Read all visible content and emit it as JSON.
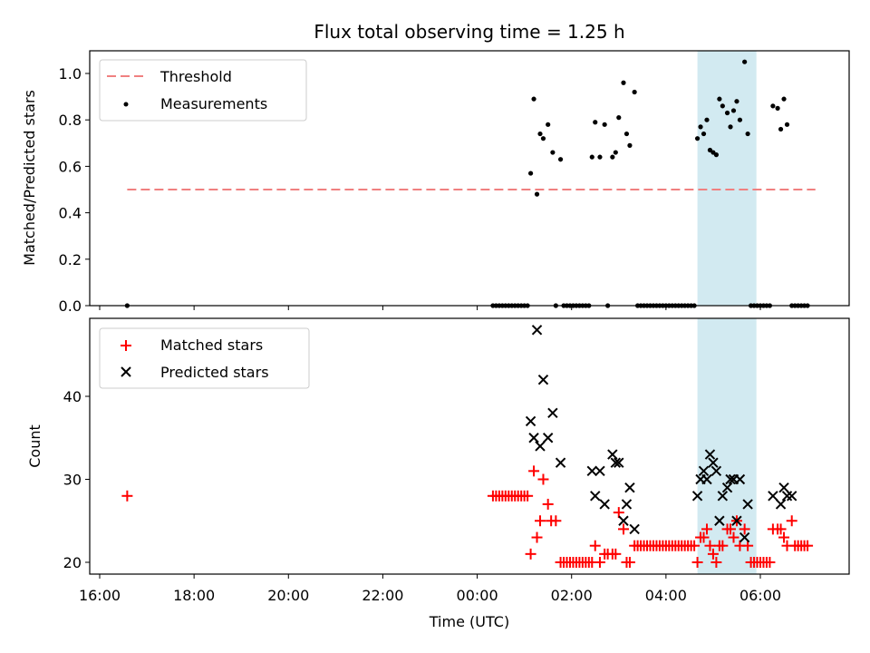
{
  "chart_data": [
    {
      "type": "scatter",
      "title": "Flux total observing time = 1.25 h",
      "xlabel": "",
      "ylabel": "Matched/Predicted stars",
      "xlim": [
        "16:00",
        "07:30 (+1d)"
      ],
      "ylim": [
        0,
        1.1
      ],
      "yticks": [
        "0.0",
        "0.2",
        "0.4",
        "0.6",
        "0.8",
        "1.0"
      ],
      "shaded_span": {
        "from": "04:40",
        "to": "05:55",
        "color": "#add8e6"
      },
      "threshold": {
        "label": "Threshold",
        "y": 0.5,
        "x_from": "16:35",
        "x_to": "07:10",
        "color": "#f08080",
        "style": "dashed"
      },
      "legend": {
        "placement": "top-left",
        "entries": [
          "Threshold",
          "Measurements"
        ]
      },
      "series": [
        {
          "name": "Measurements",
          "color": "#000000",
          "points": [
            [
              "16:35",
              0
            ],
            [
              "00:20",
              0
            ],
            [
              "00:24",
              0
            ],
            [
              "00:28",
              0
            ],
            [
              "00:32",
              0
            ],
            [
              "00:36",
              0
            ],
            [
              "00:40",
              0
            ],
            [
              "00:44",
              0
            ],
            [
              "00:48",
              0
            ],
            [
              "00:52",
              0
            ],
            [
              "00:56",
              0
            ],
            [
              "01:00",
              0
            ],
            [
              "01:04",
              0
            ],
            [
              "01:08",
              0.57
            ],
            [
              "01:12",
              0.89
            ],
            [
              "01:16",
              0.48
            ],
            [
              "01:20",
              0.74
            ],
            [
              "01:24",
              0.72
            ],
            [
              "01:30",
              0.78
            ],
            [
              "01:36",
              0.66
            ],
            [
              "01:40",
              0
            ],
            [
              "01:46",
              0.63
            ],
            [
              "01:50",
              0
            ],
            [
              "01:54",
              0
            ],
            [
              "01:58",
              0
            ],
            [
              "02:02",
              0
            ],
            [
              "02:06",
              0
            ],
            [
              "02:10",
              0
            ],
            [
              "02:14",
              0
            ],
            [
              "02:18",
              0
            ],
            [
              "02:22",
              0
            ],
            [
              "02:26",
              0.64
            ],
            [
              "02:30",
              0.79
            ],
            [
              "02:36",
              0.64
            ],
            [
              "02:42",
              0.78
            ],
            [
              "02:46",
              0
            ],
            [
              "02:52",
              0.64
            ],
            [
              "02:56",
              0.66
            ],
            [
              "03:00",
              0.81
            ],
            [
              "03:06",
              0.96
            ],
            [
              "03:10",
              0.74
            ],
            [
              "03:14",
              0.69
            ],
            [
              "03:20",
              0.92
            ],
            [
              "03:24",
              0
            ],
            [
              "03:28",
              0
            ],
            [
              "03:32",
              0
            ],
            [
              "03:36",
              0
            ],
            [
              "03:40",
              0
            ],
            [
              "03:44",
              0
            ],
            [
              "03:48",
              0
            ],
            [
              "03:52",
              0
            ],
            [
              "03:56",
              0
            ],
            [
              "04:00",
              0
            ],
            [
              "04:04",
              0
            ],
            [
              "04:08",
              0
            ],
            [
              "04:12",
              0
            ],
            [
              "04:16",
              0
            ],
            [
              "04:20",
              0
            ],
            [
              "04:24",
              0
            ],
            [
              "04:28",
              0
            ],
            [
              "04:32",
              0
            ],
            [
              "04:36",
              0
            ],
            [
              "04:40",
              0.72
            ],
            [
              "04:44",
              0.77
            ],
            [
              "04:48",
              0.74
            ],
            [
              "04:52",
              0.8
            ],
            [
              "04:56",
              0.67
            ],
            [
              "05:00",
              0.66
            ],
            [
              "05:04",
              0.65
            ],
            [
              "05:08",
              0.89
            ],
            [
              "05:12",
              0.86
            ],
            [
              "05:18",
              0.83
            ],
            [
              "05:22",
              0.77
            ],
            [
              "05:26",
              0.84
            ],
            [
              "05:30",
              0.88
            ],
            [
              "05:34",
              0.8
            ],
            [
              "05:40",
              1.05
            ],
            [
              "05:44",
              0.74
            ],
            [
              "05:48",
              0
            ],
            [
              "05:52",
              0
            ],
            [
              "05:56",
              0
            ],
            [
              "06:00",
              0
            ],
            [
              "06:04",
              0
            ],
            [
              "06:08",
              0
            ],
            [
              "06:12",
              0
            ],
            [
              "06:16",
              0.86
            ],
            [
              "06:22",
              0.85
            ],
            [
              "06:26",
              0.76
            ],
            [
              "06:30",
              0.89
            ],
            [
              "06:34",
              0.78
            ],
            [
              "06:40",
              0
            ],
            [
              "06:44",
              0
            ],
            [
              "06:48",
              0
            ],
            [
              "06:52",
              0
            ],
            [
              "06:56",
              0
            ],
            [
              "07:00",
              0
            ]
          ]
        }
      ]
    },
    {
      "type": "scatter",
      "title": "",
      "xlabel": "Time (UTC)",
      "ylabel": "Count",
      "xlim": [
        "16:00",
        "07:30 (+1d)"
      ],
      "ylim": [
        18.5,
        49
      ],
      "xticks": [
        "16:00",
        "18:00",
        "20:00",
        "22:00",
        "00:00",
        "02:00",
        "04:00",
        "06:00"
      ],
      "yticks": [
        "20",
        "30",
        "40"
      ],
      "shaded_span": {
        "from": "04:40",
        "to": "05:55",
        "color": "#add8e6"
      },
      "legend": {
        "placement": "top-left",
        "entries": [
          "Matched stars",
          "Predicted stars"
        ]
      },
      "series": [
        {
          "name": "Matched stars",
          "color": "#ff0000",
          "marker": "plus",
          "points": [
            [
              "16:35",
              28
            ],
            [
              "00:20",
              28
            ],
            [
              "00:24",
              28
            ],
            [
              "00:28",
              28
            ],
            [
              "00:32",
              28
            ],
            [
              "00:36",
              28
            ],
            [
              "00:40",
              28
            ],
            [
              "00:44",
              28
            ],
            [
              "00:48",
              28
            ],
            [
              "00:52",
              28
            ],
            [
              "00:56",
              28
            ],
            [
              "01:00",
              28
            ],
            [
              "01:04",
              28
            ],
            [
              "01:08",
              21
            ],
            [
              "01:12",
              31
            ],
            [
              "01:16",
              23
            ],
            [
              "01:20",
              25
            ],
            [
              "01:24",
              30
            ],
            [
              "01:30",
              27
            ],
            [
              "01:34",
              25
            ],
            [
              "01:40",
              25
            ],
            [
              "01:46",
              20
            ],
            [
              "01:50",
              20
            ],
            [
              "01:54",
              20
            ],
            [
              "01:58",
              20
            ],
            [
              "02:02",
              20
            ],
            [
              "02:06",
              20
            ],
            [
              "02:10",
              20
            ],
            [
              "02:14",
              20
            ],
            [
              "02:18",
              20
            ],
            [
              "02:22",
              20
            ],
            [
              "02:26",
              20
            ],
            [
              "02:30",
              22
            ],
            [
              "02:36",
              20
            ],
            [
              "02:42",
              21
            ],
            [
              "02:46",
              21
            ],
            [
              "02:52",
              21
            ],
            [
              "02:56",
              21
            ],
            [
              "03:00",
              26
            ],
            [
              "03:06",
              24
            ],
            [
              "03:10",
              20
            ],
            [
              "03:14",
              20
            ],
            [
              "03:20",
              22
            ],
            [
              "03:24",
              22
            ],
            [
              "03:28",
              22
            ],
            [
              "03:32",
              22
            ],
            [
              "03:36",
              22
            ],
            [
              "03:40",
              22
            ],
            [
              "03:44",
              22
            ],
            [
              "03:48",
              22
            ],
            [
              "03:52",
              22
            ],
            [
              "03:56",
              22
            ],
            [
              "04:00",
              22
            ],
            [
              "04:04",
              22
            ],
            [
              "04:08",
              22
            ],
            [
              "04:12",
              22
            ],
            [
              "04:16",
              22
            ],
            [
              "04:20",
              22
            ],
            [
              "04:24",
              22
            ],
            [
              "04:28",
              22
            ],
            [
              "04:32",
              22
            ],
            [
              "04:36",
              22
            ],
            [
              "04:40",
              20
            ],
            [
              "04:44",
              23
            ],
            [
              "04:48",
              23
            ],
            [
              "04:52",
              24
            ],
            [
              "04:56",
              22
            ],
            [
              "05:00",
              21
            ],
            [
              "05:04",
              20
            ],
            [
              "05:08",
              22
            ],
            [
              "05:12",
              22
            ],
            [
              "05:18",
              24
            ],
            [
              "05:22",
              24
            ],
            [
              "05:26",
              23
            ],
            [
              "05:30",
              25
            ],
            [
              "05:34",
              22
            ],
            [
              "05:40",
              24
            ],
            [
              "05:44",
              22
            ],
            [
              "05:48",
              20
            ],
            [
              "05:52",
              20
            ],
            [
              "05:56",
              20
            ],
            [
              "06:00",
              20
            ],
            [
              "06:04",
              20
            ],
            [
              "06:08",
              20
            ],
            [
              "06:12",
              20
            ],
            [
              "06:16",
              24
            ],
            [
              "06:22",
              24
            ],
            [
              "06:26",
              24
            ],
            [
              "06:30",
              23
            ],
            [
              "06:34",
              22
            ],
            [
              "06:40",
              25
            ],
            [
              "06:44",
              22
            ],
            [
              "06:48",
              22
            ],
            [
              "06:52",
              22
            ],
            [
              "06:56",
              22
            ],
            [
              "07:00",
              22
            ]
          ]
        },
        {
          "name": "Predicted stars",
          "color": "#000000",
          "marker": "x",
          "points": [
            [
              "01:08",
              37
            ],
            [
              "01:12",
              35
            ],
            [
              "01:16",
              48
            ],
            [
              "01:20",
              34
            ],
            [
              "01:24",
              42
            ],
            [
              "01:30",
              35
            ],
            [
              "01:36",
              38
            ],
            [
              "01:46",
              32
            ],
            [
              "02:26",
              31
            ],
            [
              "02:30",
              28
            ],
            [
              "02:36",
              31
            ],
            [
              "02:42",
              27
            ],
            [
              "02:52",
              33
            ],
            [
              "02:56",
              32
            ],
            [
              "03:00",
              32
            ],
            [
              "03:06",
              25
            ],
            [
              "03:10",
              27
            ],
            [
              "03:14",
              29
            ],
            [
              "03:20",
              24
            ],
            [
              "04:40",
              28
            ],
            [
              "04:44",
              30
            ],
            [
              "04:48",
              31
            ],
            [
              "04:52",
              30
            ],
            [
              "04:56",
              33
            ],
            [
              "05:00",
              32
            ],
            [
              "05:04",
              31
            ],
            [
              "05:08",
              25
            ],
            [
              "05:12",
              28
            ],
            [
              "05:18",
              29
            ],
            [
              "05:22",
              30
            ],
            [
              "05:26",
              30
            ],
            [
              "05:30",
              25
            ],
            [
              "05:34",
              30
            ],
            [
              "05:40",
              23
            ],
            [
              "05:44",
              27
            ],
            [
              "06:16",
              28
            ],
            [
              "06:26",
              27
            ],
            [
              "06:30",
              29
            ],
            [
              "06:34",
              28
            ],
            [
              "06:40",
              28
            ]
          ]
        }
      ]
    }
  ]
}
